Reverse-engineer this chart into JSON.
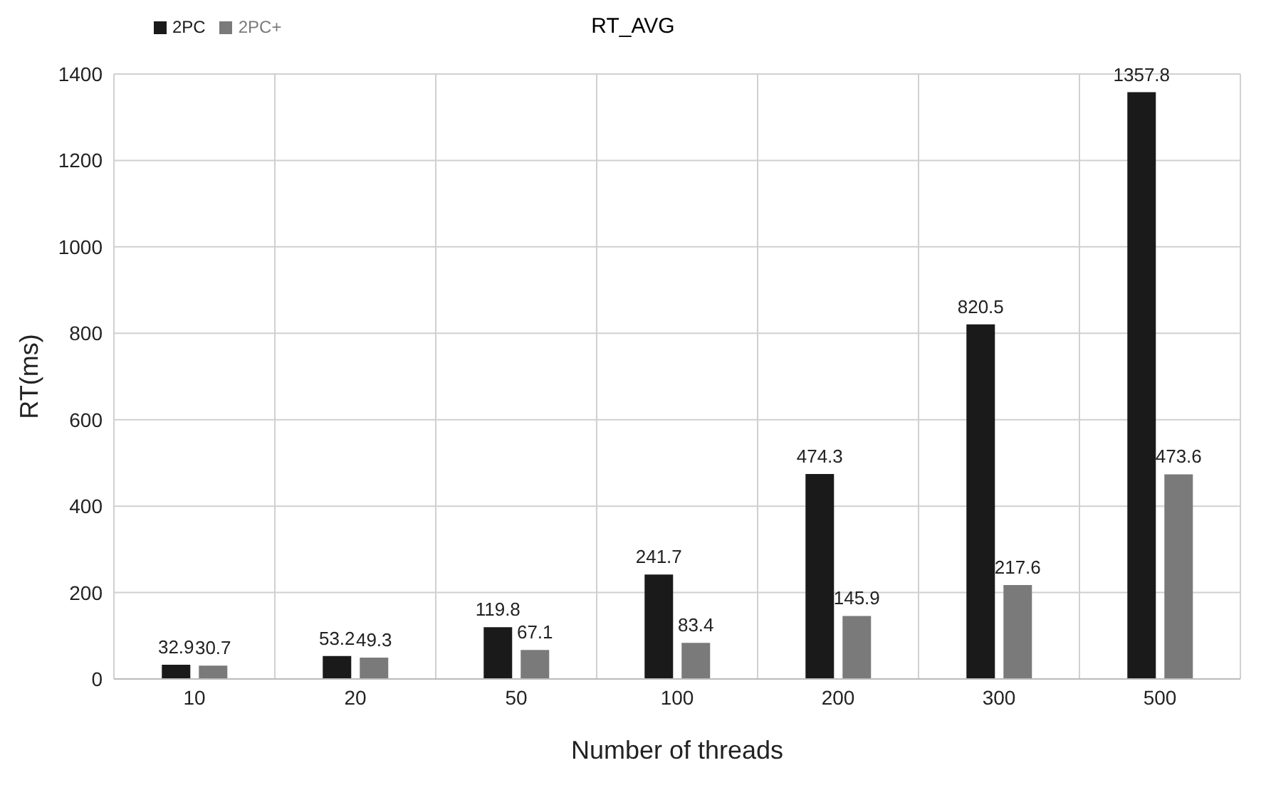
{
  "chart_data": {
    "type": "bar",
    "title": "RT_AVG",
    "xlabel": "Number of threads",
    "ylabel": "RT(ms)",
    "categories": [
      "10",
      "20",
      "50",
      "100",
      "200",
      "300",
      "500"
    ],
    "series": [
      {
        "name": "2PC",
        "color": "#1a1a1a",
        "values": [
          32.9,
          53.2,
          119.8,
          241.7,
          474.3,
          820.5,
          1357.8
        ]
      },
      {
        "name": "2PC+",
        "color": "#7a7a7a",
        "values": [
          30.7,
          49.3,
          67.1,
          83.4,
          145.9,
          217.6,
          473.6
        ]
      }
    ],
    "ylim": [
      0,
      1400
    ],
    "yticks": [
      0,
      200,
      400,
      600,
      800,
      1000,
      1200,
      1400
    ],
    "grid": true,
    "legend": "top left",
    "data_labels": true
  }
}
